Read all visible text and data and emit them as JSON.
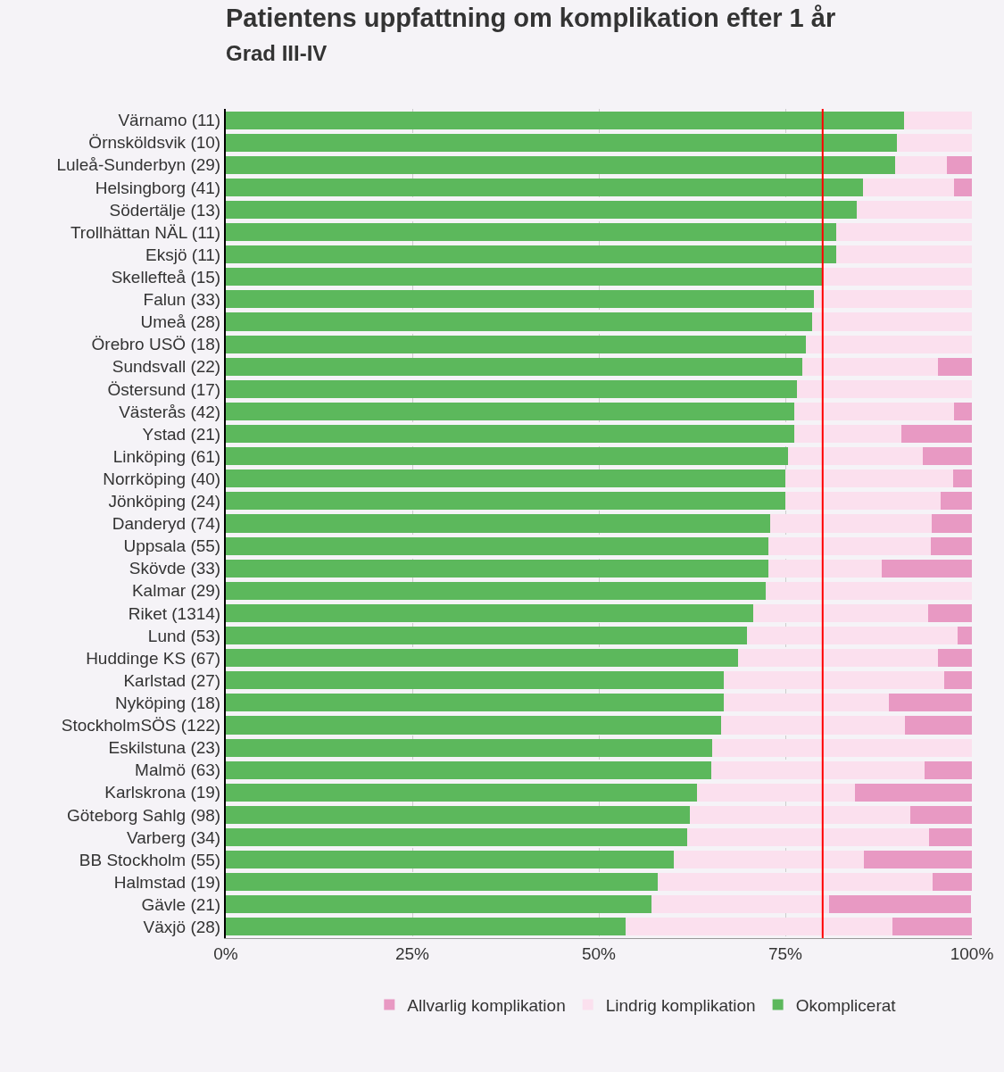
{
  "chart_data": {
    "type": "bar",
    "orientation": "horizontal",
    "stacked": true,
    "title": "Patientens uppfattning om komplikation efter 1 år",
    "subtitle": "Grad III-IV",
    "categories": [
      "Värnamo (11)",
      "Örnsköldsvik (10)",
      "Luleå-Sunderbyn (29)",
      "Helsingborg (41)",
      "Södertälje (13)",
      "Trollhättan NÄL (11)",
      "Eksjö (11)",
      "Skellefteå (15)",
      "Falun (33)",
      "Umeå (28)",
      "Örebro USÖ (18)",
      "Sundsvall (22)",
      "Östersund (17)",
      "Västerås (42)",
      "Ystad (21)",
      "Linköping (61)",
      "Norrköping (40)",
      "Jönköping (24)",
      "Danderyd (74)",
      "Uppsala (55)",
      "Skövde (33)",
      "Kalmar (29)",
      "Riket (1314)",
      "Lund (53)",
      "Huddinge KS (67)",
      "Karlstad (27)",
      "Nyköping (18)",
      "StockholmSÖS (122)",
      "Eskilstuna (23)",
      "Malmö (63)",
      "Karlskrona (19)",
      "Göteborg Sahlg (98)",
      "Varberg (34)",
      "BB Stockholm (55)",
      "Halmstad (19)",
      "Gävle (21)",
      "Växjö (28)"
    ],
    "series": [
      {
        "name": "Okomplicerat",
        "color": "#5cb85c",
        "values": [
          90.9,
          90.0,
          89.7,
          85.4,
          84.6,
          81.8,
          81.8,
          80.0,
          78.8,
          78.6,
          77.8,
          77.3,
          76.5,
          76.2,
          76.2,
          75.4,
          75.0,
          75.0,
          73.0,
          72.7,
          72.7,
          72.4,
          70.7,
          69.8,
          68.7,
          66.7,
          66.7,
          66.4,
          65.2,
          65.1,
          63.2,
          62.2,
          61.8,
          60.0,
          57.9,
          57.1,
          53.6
        ]
      },
      {
        "name": "Lindrig komplikation",
        "color": "#fbe0ee",
        "values": [
          9.1,
          10.0,
          6.9,
          12.2,
          15.4,
          18.2,
          18.2,
          20.0,
          21.2,
          21.4,
          22.2,
          18.2,
          23.5,
          21.4,
          14.3,
          18.0,
          22.5,
          20.8,
          21.6,
          21.8,
          15.2,
          27.6,
          23.4,
          28.3,
          26.8,
          29.6,
          22.2,
          24.6,
          34.8,
          28.6,
          21.1,
          29.6,
          32.4,
          25.5,
          36.8,
          23.8,
          35.7
        ]
      },
      {
        "name": "Allvarlig komplikation",
        "color": "#e899c3",
        "values": [
          0,
          0,
          3.4,
          2.4,
          0,
          0,
          0,
          0,
          0,
          0,
          0,
          4.5,
          0,
          2.4,
          9.5,
          6.6,
          2.5,
          4.2,
          5.4,
          5.5,
          12.1,
          0,
          5.9,
          1.9,
          4.5,
          3.7,
          11.1,
          9.0,
          0,
          6.3,
          15.8,
          8.2,
          5.9,
          14.5,
          5.3,
          19.0,
          10.7
        ]
      }
    ],
    "xlim": [
      0,
      100
    ],
    "xticks": [
      {
        "value": 0,
        "label": "0%"
      },
      {
        "value": 25,
        "label": "25%"
      },
      {
        "value": 50,
        "label": "50%"
      },
      {
        "value": 75,
        "label": "75%"
      },
      {
        "value": 100,
        "label": "100%"
      }
    ],
    "ref_lines": [
      {
        "axis": "x",
        "value": 80,
        "color": "#ff0000"
      }
    ],
    "grid": "x",
    "legend": "bottom"
  }
}
